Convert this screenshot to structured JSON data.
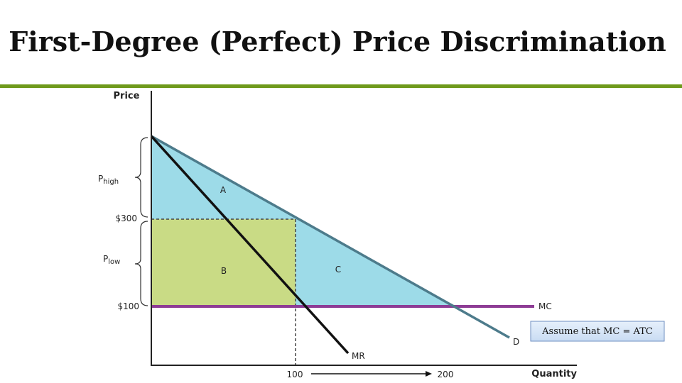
{
  "title": "First-Degree (Perfect) Price Discrimination",
  "axes": {
    "y_label": "Price",
    "x_label": "Quantity"
  },
  "price_labels": {
    "p_high": {
      "main": "P",
      "sub": "high"
    },
    "p_300": "$300",
    "p_low": {
      "main": "P",
      "sub": "low"
    },
    "p_100": "$100"
  },
  "quantity_labels": {
    "q_100": "100",
    "q_200": "200"
  },
  "areas": {
    "a": "A",
    "b": "B",
    "c": "C"
  },
  "curves": {
    "mc": "MC",
    "d": "D",
    "mr": "MR"
  },
  "note": "Assume that MC = ATC"
}
